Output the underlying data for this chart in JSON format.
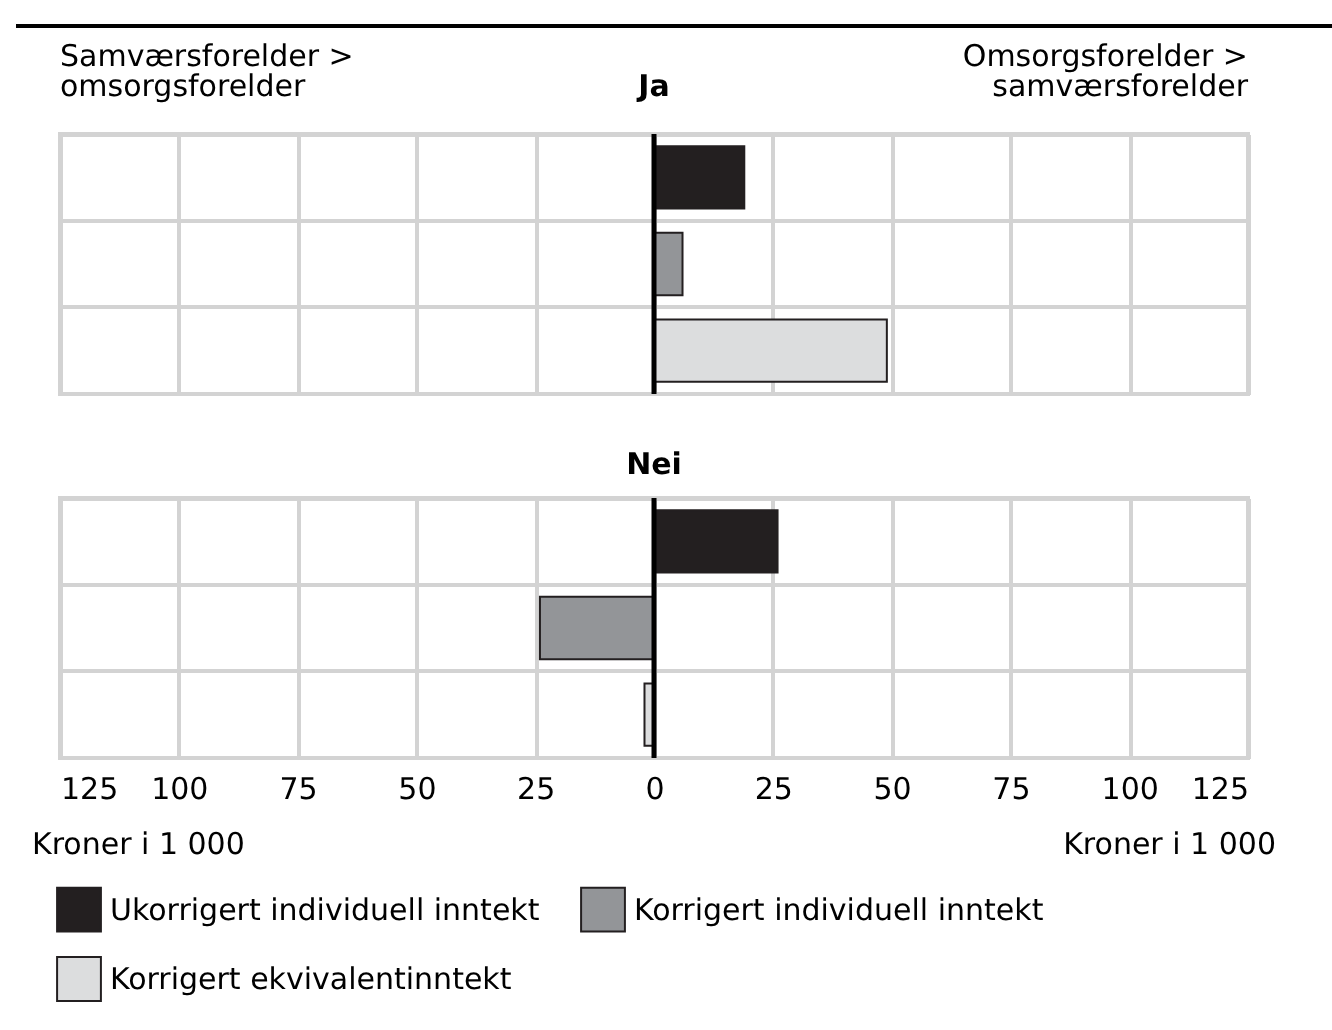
{
  "chart_data": [
    {
      "type": "bar",
      "orientation": "horizontal",
      "title": "Ja",
      "categories": [
        null,
        null,
        null
      ],
      "values": [
        19,
        6,
        49
      ],
      "colors": [
        "#231f20",
        "#939598",
        "#dcddde"
      ],
      "xlim": [
        -125,
        125
      ],
      "xticks": [
        -125,
        -100,
        -75,
        -50,
        -25,
        0,
        25,
        50,
        75,
        100,
        125
      ],
      "grid": true,
      "tick_labels": false,
      "ref_lines": [
        {
          "axis": "x",
          "value": 0,
          "color": "#000000"
        }
      ],
      "annotations": [
        "Samværsforelder >\nomsorgsforelder",
        "Omsorgsforelder >\nsamværsforelder"
      ]
    },
    {
      "type": "bar",
      "orientation": "horizontal",
      "title": "Nei",
      "categories": [
        null,
        null,
        null
      ],
      "series": [
        {
          "name": "Ukorrigert individuell inntekt",
          "color": "#231f20",
          "values": [
            26,
            null,
            null
          ]
        },
        {
          "name": "Korrigert individuell inntekt",
          "color": "#939598",
          "values": [
            null,
            -24,
            null
          ]
        },
        {
          "name": "Korrigert ekvivalentinntekt",
          "color": "#dcddde",
          "values": [
            null,
            null,
            -2
          ]
        }
      ],
      "xlim": [
        -125,
        125
      ],
      "xticks": [
        {
          "value": -125,
          "label": "125"
        },
        {
          "value": -100,
          "label": "100"
        },
        {
          "value": -75,
          "label": "75"
        },
        {
          "value": -50,
          "label": "50"
        },
        {
          "value": -25,
          "label": "25"
        },
        0,
        25,
        50,
        75,
        100,
        125
      ],
      "xlabel": "Kroner i 1 000",
      "grid": true,
      "legend": "bottom",
      "ref_lines": [
        {
          "axis": "x",
          "value": 0,
          "color": "#000000"
        }
      ]
    }
  ]
}
